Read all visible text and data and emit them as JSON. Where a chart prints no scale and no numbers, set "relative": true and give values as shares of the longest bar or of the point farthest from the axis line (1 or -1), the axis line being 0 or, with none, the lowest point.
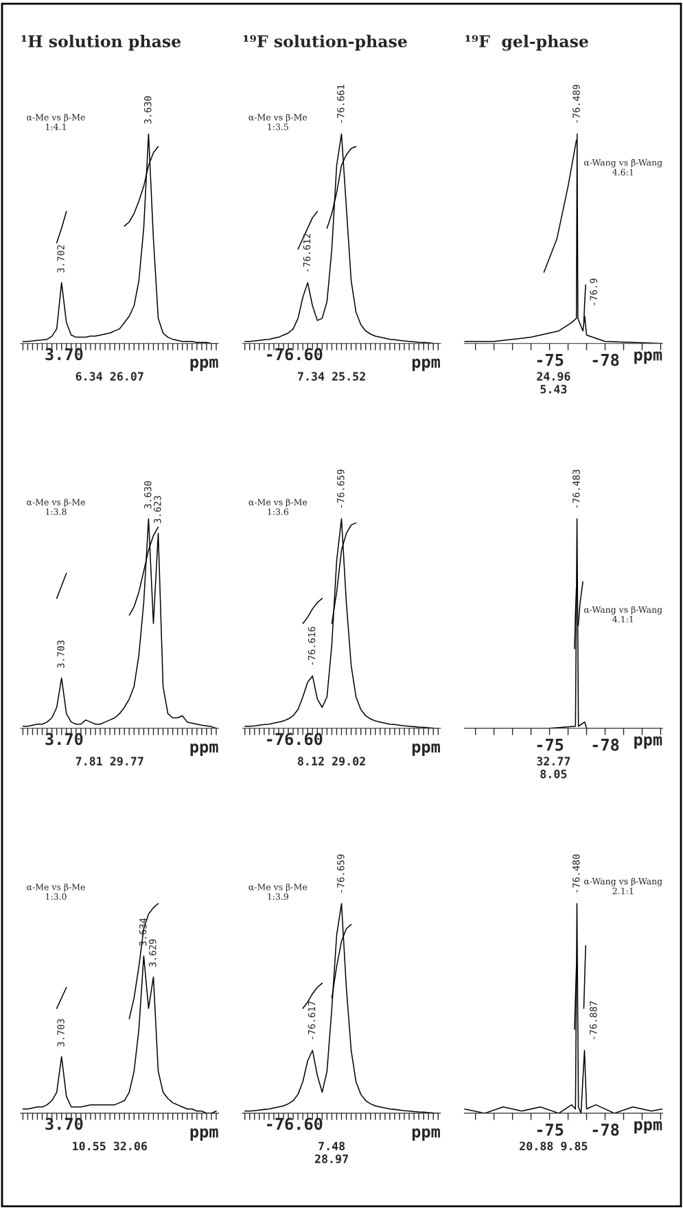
{
  "chart_data": [
    {
      "type": "line",
      "title": "¹H solution phase",
      "xlabel": "ppm",
      "relative": true,
      "categories": [
        null,
        null,
        null,
        null,
        null,
        null,
        null,
        null,
        null,
        null,
        null,
        null,
        null,
        null,
        null,
        null,
        null,
        null,
        null,
        null,
        null,
        null,
        null,
        null,
        null,
        null,
        null,
        null,
        null,
        null,
        null,
        null,
        null,
        null,
        null,
        null,
        null,
        null,
        null,
        null,
        null
      ],
      "series": [
        {
          "color": "#000000",
          "values": [
            0.01,
            0.01,
            0.012,
            0.015,
            0.017,
            0.02,
            0.035,
            0.07,
            0.29,
            0.1,
            0.04,
            0.03,
            0.03,
            0.03,
            0.035,
            0.035,
            0.04,
            0.045,
            0.05,
            0.06,
            0.07,
            0.1,
            0.13,
            0.18,
            0.3,
            0.55,
            1.0,
            0.5,
            0.12,
            0.05,
            0.03,
            0.02,
            0.015,
            0.01,
            0.01,
            0.01,
            0.005,
            0.005,
            0.005,
            0.0,
            0.0
          ]
        },
        {
          "color": "#000000",
          "values": [
            null,
            null,
            null,
            null,
            null,
            null,
            null,
            0.48,
            0.55,
            0.63,
            null,
            null,
            null,
            null,
            null,
            null,
            null,
            null,
            null,
            null,
            null,
            null,
            null,
            null,
            null,
            null,
            null,
            null,
            null,
            null,
            null,
            null,
            null,
            null,
            null,
            null,
            null,
            null,
            null,
            null,
            null
          ]
        },
        {
          "color": "#000000",
          "values": [
            null,
            null,
            null,
            null,
            null,
            null,
            null,
            null,
            null,
            null,
            null,
            null,
            null,
            null,
            null,
            null,
            null,
            null,
            null,
            null,
            null,
            0.56,
            0.58,
            0.62,
            0.68,
            0.75,
            0.85,
            0.91,
            0.94,
            null,
            null,
            null,
            null,
            null,
            null,
            null,
            null,
            null,
            null,
            null,
            null
          ]
        }
      ],
      "annotations": [
        "3.702",
        "3.630",
        "α-Me vs β-Me\n1:4.1",
        "6.34 26.07",
        "3.70"
      ]
    },
    {
      "type": "line",
      "title": "¹⁹F solution-phase",
      "xlabel": "ppm",
      "relative": true,
      "categories": [
        null,
        null,
        null,
        null,
        null,
        null,
        null,
        null,
        null,
        null,
        null,
        null,
        null,
        null,
        null,
        null,
        null,
        null,
        null,
        null,
        null,
        null,
        null,
        null,
        null,
        null,
        null,
        null,
        null,
        null,
        null,
        null,
        null,
        null,
        null,
        null,
        null,
        null,
        null,
        null,
        null
      ],
      "series": [
        {
          "color": "#000000",
          "values": [
            0.01,
            0.01,
            0.012,
            0.015,
            0.018,
            0.02,
            0.025,
            0.03,
            0.04,
            0.05,
            0.07,
            0.12,
            0.22,
            0.29,
            0.18,
            0.11,
            0.12,
            0.2,
            0.45,
            0.85,
            1.0,
            0.65,
            0.3,
            0.15,
            0.09,
            0.06,
            0.045,
            0.035,
            0.03,
            0.025,
            0.02,
            0.018,
            0.015,
            0.012,
            0.01,
            0.008,
            0.006,
            0.005,
            0.003,
            0.001,
            0.0
          ]
        },
        {
          "color": "#000000",
          "values": [
            null,
            null,
            null,
            null,
            null,
            null,
            null,
            null,
            null,
            null,
            null,
            0.45,
            0.5,
            0.55,
            0.6,
            0.63,
            null,
            null,
            null,
            null,
            null,
            null,
            null,
            null,
            null,
            null,
            null,
            null,
            null,
            null,
            null,
            null,
            null,
            null,
            null,
            null,
            null,
            null,
            null,
            null,
            null
          ]
        },
        {
          "color": "#000000",
          "values": [
            null,
            null,
            null,
            null,
            null,
            null,
            null,
            null,
            null,
            null,
            null,
            null,
            null,
            null,
            null,
            null,
            null,
            0.55,
            0.62,
            0.72,
            0.85,
            0.9,
            0.93,
            0.94,
            null,
            null,
            null,
            null,
            null,
            null,
            null,
            null,
            null,
            null,
            null,
            null,
            null,
            null,
            null,
            null,
            null
          ]
        }
      ],
      "annotations": [
        "-76.612",
        "-76.661",
        "α-Me vs β-Me\n1:3.5",
        "7.34 25.52",
        "-76.60"
      ]
    },
    {
      "type": "line",
      "title": "¹⁹F  gel-phase",
      "xlabel": "ppm",
      "relative": true,
      "xlim": [
        -70.4,
        -81.1
      ],
      "xticks": [
        {
          "value": -71,
          "label": null
        },
        {
          "value": -72,
          "label": null
        },
        {
          "value": -73,
          "label": null
        },
        {
          "value": -74,
          "label": null
        },
        {
          "value": -75,
          "label": "-75"
        },
        {
          "value": -76,
          "label": null
        },
        {
          "value": -77,
          "label": null
        },
        {
          "value": -78,
          "label": "-78"
        },
        {
          "value": -79,
          "label": null
        },
        {
          "value": -80,
          "label": null
        },
        {
          "value": -81,
          "label": null
        }
      ],
      "series": [
        {
          "color": "#000000",
          "x": [
            -70.4,
            -72,
            -74,
            -75.5,
            -76.2,
            -76.45,
            -76.489,
            -76.53,
            -76.8,
            -76.9,
            -77.0,
            -78,
            -81.1
          ],
          "values": [
            0.01,
            0.01,
            0.03,
            0.06,
            0.1,
            0.12,
            1.0,
            0.12,
            0.06,
            0.13,
            0.04,
            0.01,
            0.0
          ]
        },
        {
          "color": "#000000",
          "x": [
            -74.7,
            -75.4,
            -76.0,
            -76.45
          ],
          "values": [
            0.34,
            0.5,
            0.75,
            0.97
          ]
        },
        {
          "color": "#000000",
          "x": [
            -76.85,
            -76.9,
            -76.95
          ],
          "values": [
            0.1,
            0.2,
            0.28
          ]
        }
      ],
      "annotations": [
        {
          "text": "-76.489",
          "x": -76.489,
          "y": 1.0
        },
        {
          "text": "-76.9",
          "x": -76.9,
          "y": 0.13
        },
        "α-Wang vs β-Wang\n4.6:1",
        "24.96\n5.43"
      ]
    },
    {
      "type": "line",
      "xlabel": "ppm",
      "relative": true,
      "categories": [
        null,
        null,
        null,
        null,
        null,
        null,
        null,
        null,
        null,
        null,
        null,
        null,
        null,
        null,
        null,
        null,
        null,
        null,
        null,
        null,
        null,
        null,
        null,
        null,
        null,
        null,
        null,
        null,
        null,
        null,
        null,
        null,
        null,
        null,
        null,
        null,
        null,
        null,
        null,
        null,
        null
      ],
      "series": [
        {
          "color": "#000000",
          "values": [
            0.01,
            0.01,
            0.015,
            0.02,
            0.02,
            0.03,
            0.05,
            0.1,
            0.24,
            0.07,
            0.03,
            0.02,
            0.02,
            0.04,
            0.03,
            0.02,
            0.02,
            0.03,
            0.04,
            0.05,
            0.07,
            0.1,
            0.14,
            0.2,
            0.35,
            0.6,
            1.0,
            0.5,
            0.93,
            0.2,
            0.07,
            0.05,
            0.05,
            0.06,
            0.03,
            0.025,
            0.02,
            0.015,
            0.012,
            0.008,
            0.0
          ]
        },
        {
          "color": "#000000",
          "values": [
            null,
            null,
            null,
            null,
            null,
            null,
            null,
            0.62,
            0.68,
            0.74,
            null,
            null,
            null,
            null,
            null,
            null,
            null,
            null,
            null,
            null,
            null,
            null,
            null,
            null,
            null,
            null,
            null,
            null,
            null,
            null,
            null,
            null,
            null,
            null,
            null,
            null,
            null,
            null,
            null,
            null,
            null
          ]
        },
        {
          "color": "#000000",
          "values": [
            null,
            null,
            null,
            null,
            null,
            null,
            null,
            null,
            null,
            null,
            null,
            null,
            null,
            null,
            null,
            null,
            null,
            null,
            null,
            null,
            null,
            null,
            0.54,
            0.58,
            0.65,
            0.75,
            0.85,
            0.92,
            0.96,
            null,
            null,
            null,
            null,
            null,
            null,
            null,
            null,
            null,
            null,
            null,
            null
          ]
        }
      ],
      "annotations": [
        "3.703",
        "3.630",
        "3.623",
        "α-Me vs β-Me\n1:3.8",
        "7.81 29.77",
        "3.70"
      ]
    },
    {
      "type": "line",
      "xlabel": "ppm",
      "relative": true,
      "categories": [
        null,
        null,
        null,
        null,
        null,
        null,
        null,
        null,
        null,
        null,
        null,
        null,
        null,
        null,
        null,
        null,
        null,
        null,
        null,
        null,
        null,
        null,
        null,
        null,
        null,
        null,
        null,
        null,
        null,
        null,
        null,
        null,
        null,
        null,
        null,
        null,
        null,
        null,
        null,
        null,
        null
      ],
      "series": [
        {
          "color": "#000000",
          "values": [
            0.01,
            0.01,
            0.012,
            0.015,
            0.018,
            0.02,
            0.025,
            0.03,
            0.035,
            0.045,
            0.06,
            0.09,
            0.15,
            0.22,
            0.25,
            0.14,
            0.1,
            0.15,
            0.4,
            0.8,
            1.0,
            0.6,
            0.3,
            0.15,
            0.09,
            0.06,
            0.045,
            0.035,
            0.03,
            0.025,
            0.02,
            0.018,
            0.015,
            0.012,
            0.01,
            0.008,
            0.006,
            0.005,
            0.003,
            0.001,
            0.0
          ]
        },
        {
          "color": "#000000",
          "values": [
            null,
            null,
            null,
            null,
            null,
            null,
            null,
            null,
            null,
            null,
            null,
            null,
            0.5,
            0.53,
            0.57,
            0.6,
            0.62,
            null,
            null,
            null,
            null,
            null,
            null,
            null,
            null,
            null,
            null,
            null,
            null,
            null,
            null,
            null,
            null,
            null,
            null,
            null,
            null,
            null,
            null,
            null,
            null
          ]
        },
        {
          "color": "#000000",
          "values": [
            null,
            null,
            null,
            null,
            null,
            null,
            null,
            null,
            null,
            null,
            null,
            null,
            null,
            null,
            null,
            null,
            null,
            null,
            0.5,
            0.65,
            0.85,
            0.93,
            0.97,
            0.98,
            null,
            null,
            null,
            null,
            null,
            null,
            null,
            null,
            null,
            null,
            null,
            null,
            null,
            null,
            null,
            null,
            null
          ]
        }
      ],
      "annotations": [
        "-76.616",
        "-76.659",
        "α-Me vs β-Me\n1:3.6",
        "8.12 29.02",
        "-76.60"
      ]
    },
    {
      "type": "line",
      "xlabel": "ppm",
      "relative": true,
      "xlim": [
        -70.4,
        -81.1
      ],
      "xticks": [
        {
          "value": -71,
          "label": null
        },
        {
          "value": -72,
          "label": null
        },
        {
          "value": -73,
          "label": null
        },
        {
          "value": -74,
          "label": null
        },
        {
          "value": -75,
          "label": "-75"
        },
        {
          "value": -76,
          "label": null
        },
        {
          "value": -77,
          "label": null
        },
        {
          "value": -78,
          "label": "-78"
        },
        {
          "value": -79,
          "label": null
        },
        {
          "value": -80,
          "label": null
        },
        {
          "value": -81,
          "label": null
        }
      ],
      "series": [
        {
          "color": "#000000",
          "x": [
            -70.4,
            -75,
            -76.4,
            -76.483,
            -76.56,
            -76.9,
            -77.0,
            -81.1
          ],
          "values": [
            0.0,
            0.0,
            0.01,
            1.0,
            0.01,
            0.03,
            0.0,
            0.0
          ]
        },
        {
          "color": "#000000",
          "x": [
            -76.35,
            -76.4,
            -76.45
          ],
          "values": [
            0.38,
            0.55,
            0.67
          ]
        },
        {
          "color": "#000000",
          "x": [
            -76.55,
            -76.65,
            -76.8
          ],
          "values": [
            0.49,
            0.6,
            0.7
          ]
        }
      ],
      "annotations": [
        {
          "text": "-76.483",
          "x": -76.483,
          "y": 1.0
        },
        "α-Wang vs β-Wang\n4.1:1",
        "32.77\n8.05"
      ]
    },
    {
      "type": "line",
      "xlabel": "ppm",
      "relative": true,
      "categories": [
        null,
        null,
        null,
        null,
        null,
        null,
        null,
        null,
        null,
        null,
        null,
        null,
        null,
        null,
        null,
        null,
        null,
        null,
        null,
        null,
        null,
        null,
        null,
        null,
        null,
        null,
        null,
        null,
        null,
        null,
        null,
        null,
        null,
        null,
        null,
        null,
        null,
        null,
        null,
        null,
        null
      ],
      "series": [
        {
          "color": "#000000",
          "values": [
            0.02,
            0.02,
            0.025,
            0.03,
            0.03,
            0.04,
            0.06,
            0.1,
            0.27,
            0.08,
            0.03,
            0.03,
            0.03,
            0.035,
            0.04,
            0.04,
            0.04,
            0.04,
            0.04,
            0.04,
            0.05,
            0.06,
            0.1,
            0.2,
            0.4,
            0.75,
            0.5,
            0.65,
            0.2,
            0.1,
            0.07,
            0.05,
            0.04,
            0.03,
            0.02,
            0.02,
            0.01,
            0.01,
            0.0,
            0.0,
            0.01
          ]
        },
        {
          "color": "#000000",
          "values": [
            null,
            null,
            null,
            null,
            null,
            null,
            null,
            0.5,
            0.55,
            0.6,
            null,
            null,
            null,
            null,
            null,
            null,
            null,
            null,
            null,
            null,
            null,
            null,
            null,
            null,
            null,
            null,
            null,
            null,
            null,
            null,
            null,
            null,
            null,
            null,
            null,
            null,
            null,
            null,
            null,
            null,
            null
          ]
        },
        {
          "color": "#000000",
          "values": [
            null,
            null,
            null,
            null,
            null,
            null,
            null,
            null,
            null,
            null,
            null,
            null,
            null,
            null,
            null,
            null,
            null,
            null,
            null,
            null,
            null,
            null,
            0.45,
            0.55,
            0.7,
            0.88,
            0.95,
            0.98,
            1.0,
            null,
            null,
            null,
            null,
            null,
            null,
            null,
            null,
            null,
            null,
            null,
            null
          ]
        }
      ],
      "annotations": [
        "3.703",
        "3.634",
        "3.629",
        "α-Me vs β-Me\n1:3.0",
        "10.55 32.06",
        "3.70"
      ]
    },
    {
      "type": "line",
      "xlabel": "ppm",
      "relative": true,
      "categories": [
        null,
        null,
        null,
        null,
        null,
        null,
        null,
        null,
        null,
        null,
        null,
        null,
        null,
        null,
        null,
        null,
        null,
        null,
        null,
        null,
        null,
        null,
        null,
        null,
        null,
        null,
        null,
        null,
        null,
        null,
        null,
        null,
        null,
        null,
        null,
        null,
        null,
        null,
        null,
        null,
        null
      ],
      "series": [
        {
          "color": "#000000",
          "values": [
            0.01,
            0.01,
            0.012,
            0.015,
            0.018,
            0.02,
            0.025,
            0.03,
            0.035,
            0.045,
            0.06,
            0.09,
            0.15,
            0.25,
            0.3,
            0.18,
            0.1,
            0.2,
            0.5,
            0.85,
            1.0,
            0.6,
            0.3,
            0.15,
            0.09,
            0.06,
            0.045,
            0.035,
            0.03,
            0.025,
            0.02,
            0.018,
            0.015,
            0.012,
            0.01,
            0.008,
            0.006,
            0.005,
            0.003,
            0.001,
            0.0
          ]
        },
        {
          "color": "#000000",
          "values": [
            null,
            null,
            null,
            null,
            null,
            null,
            null,
            null,
            null,
            null,
            null,
            null,
            0.5,
            0.53,
            0.57,
            0.6,
            0.62,
            null,
            null,
            null,
            null,
            null,
            null,
            null,
            null,
            null,
            null,
            null,
            null,
            null,
            null,
            null,
            null,
            null,
            null,
            null,
            null,
            null,
            null,
            null,
            null
          ]
        },
        {
          "color": "#000000",
          "values": [
            null,
            null,
            null,
            null,
            null,
            null,
            null,
            null,
            null,
            null,
            null,
            null,
            null,
            null,
            null,
            null,
            null,
            null,
            0.55,
            0.7,
            0.82,
            0.88,
            0.9,
            null,
            null,
            null,
            null,
            null,
            null,
            null,
            null,
            null,
            null,
            null,
            null,
            null,
            null,
            null,
            null,
            null,
            null
          ]
        }
      ],
      "annotations": [
        "-76.617",
        "-76.659",
        "α-Me vs β-Me\n1:3.9",
        "7.48\n28.97",
        "-76.60"
      ]
    },
    {
      "type": "line",
      "xlabel": "ppm",
      "relative": true,
      "xlim": [
        -70.4,
        -81.1
      ],
      "xticks": [
        {
          "value": -71,
          "label": null
        },
        {
          "value": -72,
          "label": null
        },
        {
          "value": -73,
          "label": null
        },
        {
          "value": -74,
          "label": null
        },
        {
          "value": -75,
          "label": "-75"
        },
        {
          "value": -76,
          "label": null
        },
        {
          "value": -77,
          "label": null
        },
        {
          "value": -78,
          "label": "-78"
        },
        {
          "value": -79,
          "label": null
        },
        {
          "value": -80,
          "label": null
        },
        {
          "value": -81,
          "label": null
        }
      ],
      "series": [
        {
          "color": "#000000",
          "x": [
            -70.4,
            -71.5,
            -72.5,
            -73.5,
            -74.5,
            -75.5,
            -76.2,
            -76.4,
            -76.48,
            -76.56,
            -76.7,
            -76.887,
            -77.0,
            -77.5,
            -78.5,
            -79.5,
            -80.5,
            -81.1
          ],
          "values": [
            0.02,
            0.0,
            0.03,
            0.01,
            0.03,
            0.0,
            0.04,
            0.02,
            1.0,
            0.03,
            0.0,
            0.3,
            0.02,
            0.04,
            0.0,
            0.03,
            0.01,
            0.02
          ]
        },
        {
          "color": "#000000",
          "x": [
            -76.35,
            -76.4,
            -76.45
          ],
          "values": [
            0.4,
            0.55,
            0.7
          ]
        },
        {
          "color": "#000000",
          "x": [
            -76.85,
            -76.9,
            -76.95
          ],
          "values": [
            0.5,
            0.65,
            0.8
          ]
        }
      ],
      "annotations": [
        {
          "text": "-76.480",
          "x": -76.48,
          "y": 1.0
        },
        {
          "text": "-76.887",
          "x": -76.887,
          "y": 0.3
        },
        "α-Wang vs β-Wang\n2.1:1",
        "20.88 9.85"
      ]
    }
  ]
}
